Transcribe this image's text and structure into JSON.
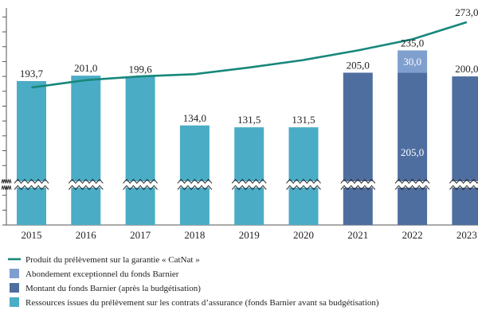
{
  "chart_data": {
    "type": "bar",
    "categories": [
      "2015",
      "2016",
      "2017",
      "2018",
      "2019",
      "2020",
      "2021",
      "2022",
      "2023"
    ],
    "series": [
      {
        "name": "Ressources issues du prélèvement sur les contrats d’assurance (fonds Barnier avant sa budgétisation)",
        "color": "#4bacc6",
        "values": [
          193.7,
          201.0,
          199.6,
          134.0,
          131.5,
          131.5,
          null,
          null,
          null
        ]
      },
      {
        "name": "Montant du fonds Barnier (après la budgétisation)",
        "color": "#4f6ea0",
        "values": [
          null,
          null,
          null,
          null,
          null,
          null,
          205.0,
          205.0,
          200.0
        ]
      },
      {
        "name": "Abondement exceptionnel du fonds Barnier",
        "color": "#7f9fcf",
        "values": [
          null,
          null,
          null,
          null,
          null,
          null,
          null,
          30.0,
          null
        ]
      },
      {
        "name": "Produit du prélèvement sur la garantie « CatNat »",
        "type": "line",
        "color": "#17877b",
        "values": [
          185,
          195,
          200,
          203,
          212,
          222,
          235,
          250,
          273
        ]
      }
    ],
    "bar_labels": [
      "193,7",
      "201,0",
      "199,6",
      "134,0",
      "131,5",
      "131,5",
      "205,0",
      "235,0",
      "200,0"
    ],
    "inner_labels": {
      "2022": [
        "30,0",
        "205,0"
      ]
    },
    "line_labels": {
      "2023": "273,0"
    },
    "axis_break": true,
    "ylim": [
      0,
      290
    ],
    "grid": false,
    "legend_position": "bottom",
    "legend_order": [
      3,
      2,
      1,
      0
    ]
  }
}
